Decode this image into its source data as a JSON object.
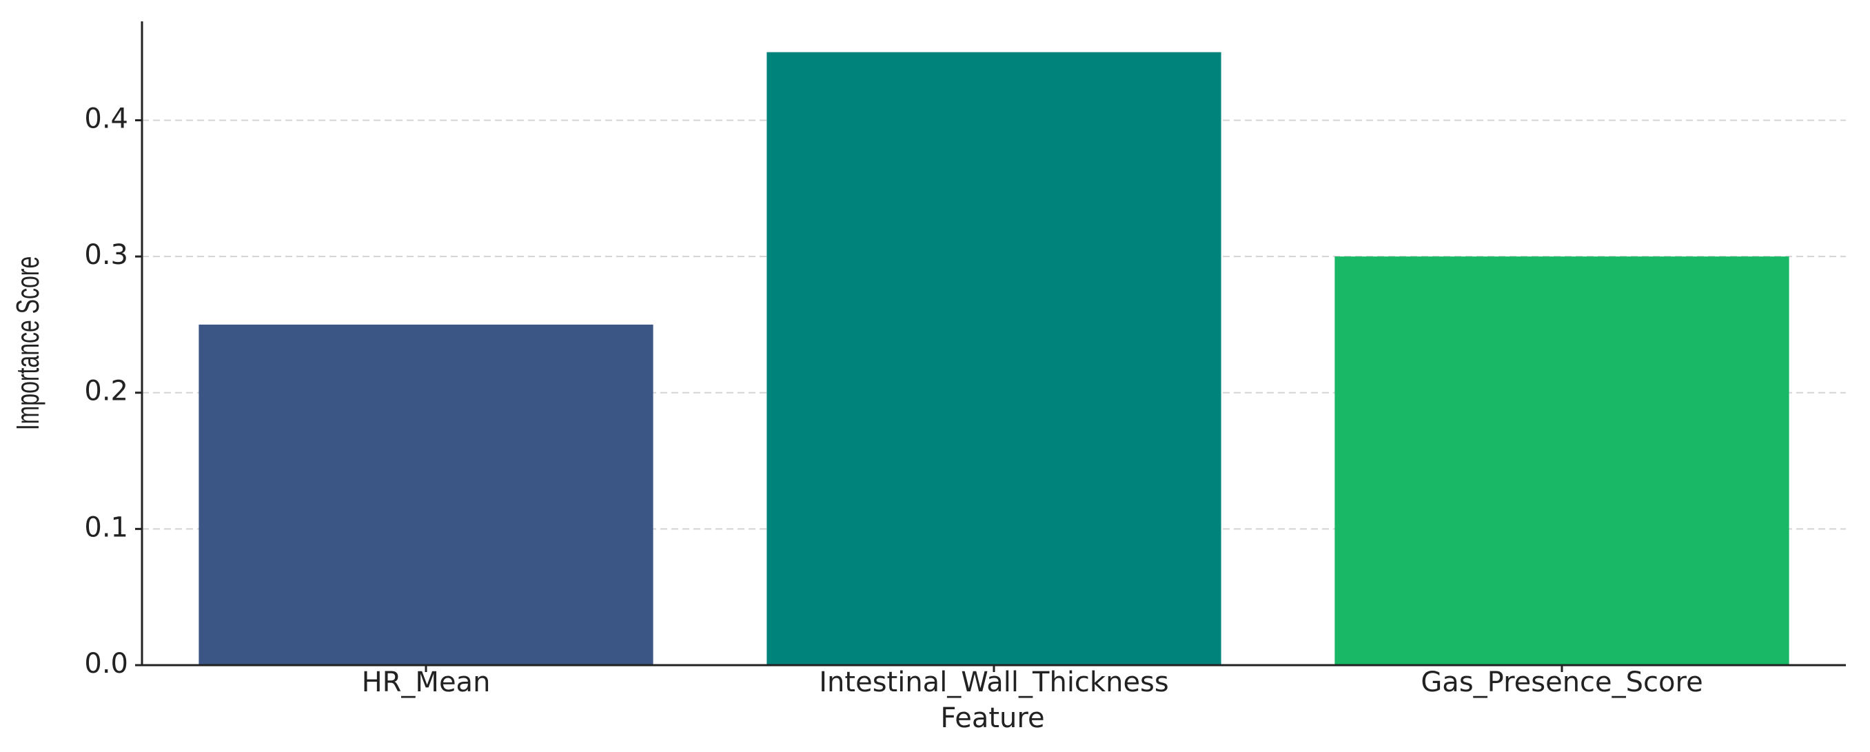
{
  "chart_data": {
    "type": "bar",
    "x_label": "Feature",
    "y_label": "Importance Score",
    "categories": [
      "HR_Mean",
      "Intestinal_Wall_Thickness",
      "Gas_Presence_Score"
    ],
    "values": [
      0.25,
      0.45,
      0.3
    ],
    "colors": [
      "#3b5584",
      "#00837b",
      "#18b866"
    ],
    "ylim": [
      0,
      0.4726
    ],
    "yticks": [
      {
        "value": 0,
        "label": "0.0"
      },
      0.1,
      0.2,
      0.3,
      0.4
    ],
    "grid": true
  }
}
